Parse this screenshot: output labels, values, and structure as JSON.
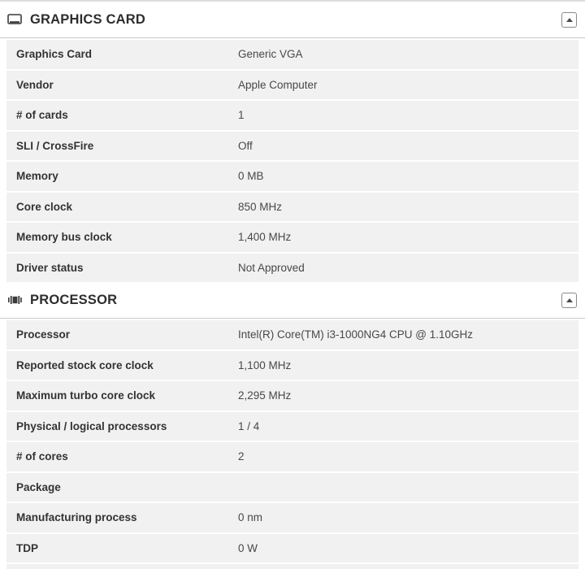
{
  "colors": {
    "row_background": "#f1f1f1",
    "header_divider": "#c9c9c9",
    "top_border": "#dcdcdc",
    "label_text": "#333333",
    "value_text": "#484848",
    "title_text": "#2d2d2d"
  },
  "sections": [
    {
      "id": "graphics-card",
      "title": "GRAPHICS CARD",
      "icon": "graphics-card-icon",
      "collapse_icon": "collapse-up-icon",
      "rows": [
        {
          "label": "Graphics Card",
          "value": "Generic VGA"
        },
        {
          "label": "Vendor",
          "value": "Apple Computer"
        },
        {
          "label": "# of cards",
          "value": "1"
        },
        {
          "label": "SLI / CrossFire",
          "value": "Off"
        },
        {
          "label": "Memory",
          "value": "0 MB"
        },
        {
          "label": "Core clock",
          "value": "850 MHz"
        },
        {
          "label": "Memory bus clock",
          "value": "1,400 MHz"
        },
        {
          "label": "Driver status",
          "value": "Not Approved"
        }
      ]
    },
    {
      "id": "processor",
      "title": "PROCESSOR",
      "icon": "processor-icon",
      "collapse_icon": "collapse-up-icon",
      "rows": [
        {
          "label": "Processor",
          "value": "Intel(R) Core(TM) i3-1000NG4 CPU @ 1.10GHz"
        },
        {
          "label": "Reported stock core clock",
          "value": "1,100 MHz"
        },
        {
          "label": "Maximum turbo core clock",
          "value": "2,295 MHz"
        },
        {
          "label": "Physical / logical processors",
          "value": "1 / 4"
        },
        {
          "label": "# of cores",
          "value": "2"
        },
        {
          "label": "Package",
          "value": ""
        },
        {
          "label": "Manufacturing process",
          "value": "0 nm"
        },
        {
          "label": "TDP",
          "value": "0 W"
        }
      ]
    }
  ]
}
